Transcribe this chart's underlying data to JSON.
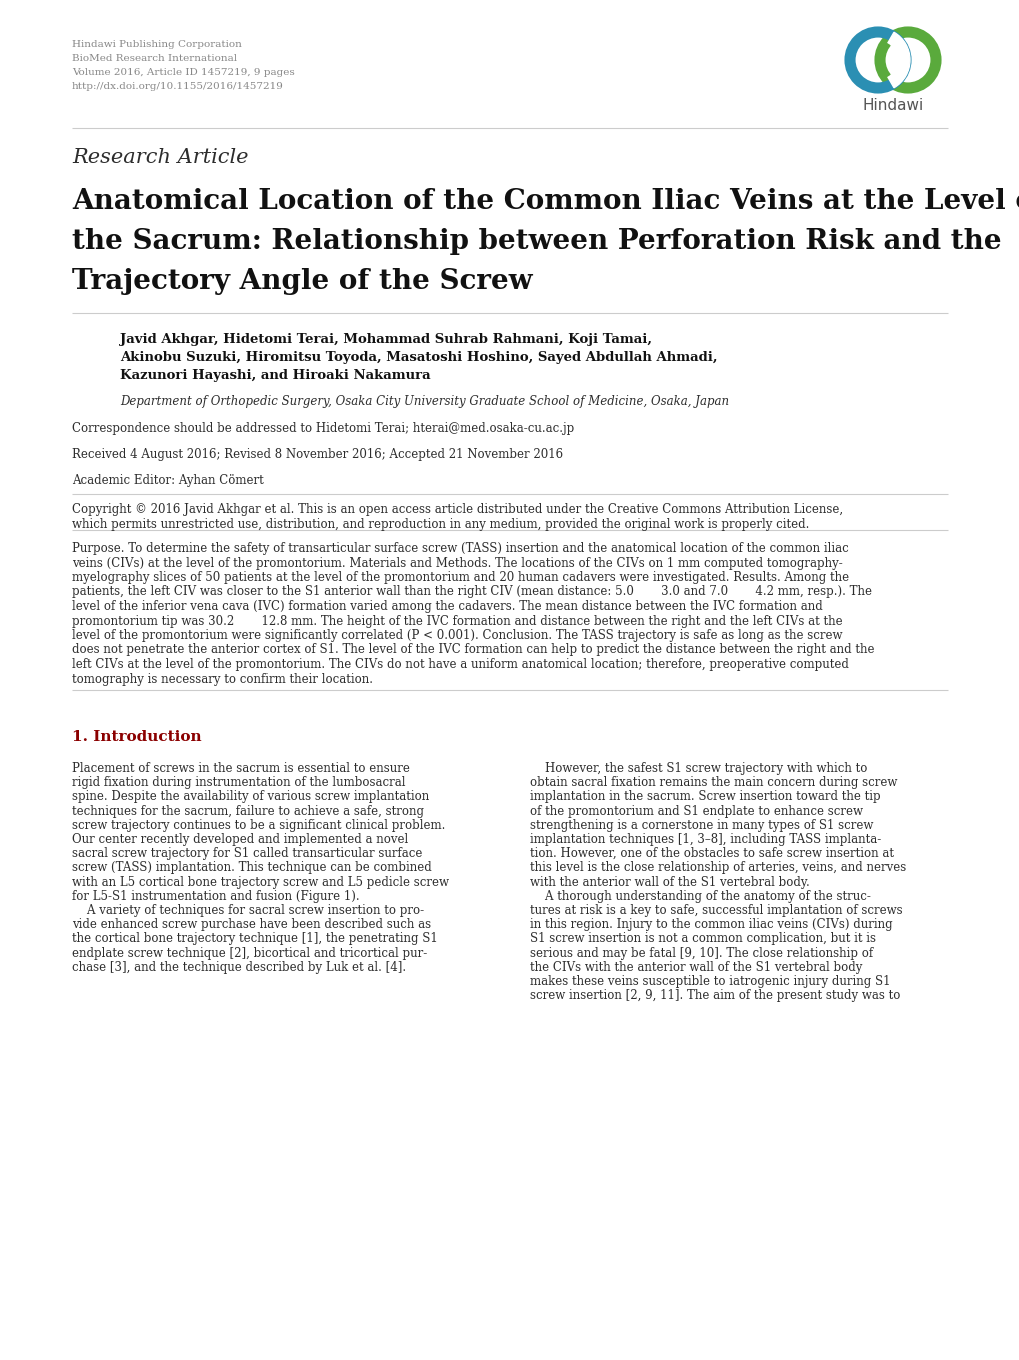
{
  "header_lines": [
    "Hindawi Publishing Corporation",
    "BioMed Research International",
    "Volume 2016, Article ID 1457219, 9 pages",
    "http://dx.doi.org/10.1155/2016/1457219"
  ],
  "research_article_label": "Research Article",
  "main_title_lines": [
    "Anatomical Location of the Common Iliac Veins at the Level of",
    "the Sacrum: Relationship between Perforation Risk and the",
    "Trajectory Angle of the Screw"
  ],
  "authors_line1": "Javid Akhgar, Hidetomi Terai, Mohammad Suhrab Rahmani, Koji Tamai,",
  "authors_line2": "Akinobu Suzuki, Hiromitsu Toyoda, Masatoshi Hoshino, Sayed Abdullah Ahmadi,",
  "authors_line3": "Kazunori Hayashi, and Hiroaki Nakamura",
  "affiliation": "Department of Orthopedic Surgery, Osaka City University Graduate School of Medicine, Osaka, Japan",
  "correspondence": "Correspondence should be addressed to Hidetomi Terai; hterai@med.osaka-cu.ac.jp",
  "received": "Received 4 August 2016; Revised 8 November 2016; Accepted 21 November 2016",
  "academic_editor": "Academic Editor: Ayhan Cömert",
  "copyright_line1": "Copyright © 2016 Javid Akhgar et al. This is an open access article distributed under the Creative Commons Attribution License,",
  "copyright_line2": "which permits unrestricted use, distribution, and reproduction in any medium, provided the original work is properly cited.",
  "abstract_lines": [
    "Purpose. To determine the safety of transarticular surface screw (TASS) insertion and the anatomical location of the common iliac",
    "veins (CIVs) at the level of the promontorium. Materials and Methods. The locations of the CIVs on 1 mm computed tomography-",
    "myelography slices of 50 patients at the level of the promontorium and 20 human cadavers were investigated. Results. Among the",
    "patients, the left CIV was closer to the S1 anterior wall than the right CIV (mean distance: 5.0   3.0 and 7.0   4.2 mm, resp.). The",
    "level of the inferior vena cava (IVC) formation varied among the cadavers. The mean distance between the IVC formation and",
    "promontorium tip was 30.2   12.8 mm. The height of the IVC formation and distance between the right and the left CIVs at the",
    "level of the promontorium were significantly correlated (P < 0.001). Conclusion. The TASS trajectory is safe as long as the screw",
    "does not penetrate the anterior cortex of S1. The level of the IVC formation can help to predict the distance between the right and the",
    "left CIVs at the level of the promontorium. The CIVs do not have a uniform anatomical location; therefore, preoperative computed",
    "tomography is necessary to confirm their location."
  ],
  "intro_heading": "1. Introduction",
  "intro_col1_lines": [
    "Placement of screws in the sacrum is essential to ensure",
    "rigid fixation during instrumentation of the lumbosacral",
    "spine. Despite the availability of various screw implantation",
    "techniques for the sacrum, failure to achieve a safe, strong",
    "screw trajectory continues to be a significant clinical problem.",
    "Our center recently developed and implemented a novel",
    "sacral screw trajectory for S1 called transarticular surface",
    "screw (TASS) implantation. This technique can be combined",
    "with an L5 cortical bone trajectory screw and L5 pedicle screw",
    "for L5-S1 instrumentation and fusion (Figure 1).",
    "    A variety of techniques for sacral screw insertion to pro-",
    "vide enhanced screw purchase have been described such as",
    "the cortical bone trajectory technique [1], the penetrating S1",
    "endplate screw technique [2], bicortical and tricortical pur-",
    "chase [3], and the technique described by Luk et al. [4]."
  ],
  "intro_col2_lines": [
    "    However, the safest S1 screw trajectory with which to",
    "obtain sacral fixation remains the main concern during screw",
    "implantation in the sacrum. Screw insertion toward the tip",
    "of the promontorium and S1 endplate to enhance screw",
    "strengthening is a cornerstone in many types of S1 screw",
    "implantation techniques [1, 3–8], including TASS implanta-",
    "tion. However, one of the obstacles to safe screw insertion at",
    "this level is the close relationship of arteries, veins, and nerves",
    "with the anterior wall of the S1 vertebral body.",
    "    A thorough understanding of the anatomy of the struc-",
    "tures at risk is a key to safe, successful implantation of screws",
    "in this region. Injury to the common iliac veins (CIVs) during",
    "S1 screw insertion is not a common complication, but it is",
    "serious and may be fatal [9, 10]. The close relationship of",
    "the CIVs with the anterior wall of the S1 vertebral body",
    "makes these veins susceptible to iatrogenic injury during S1",
    "screw insertion [2, 9, 11]. The aim of the present study was to"
  ],
  "bg_color": "#ffffff",
  "text_color": "#2d2d2d",
  "header_color": "#888888",
  "intro_heading_color": "#8B0000",
  "hindawi_blue": "#2b8fb3",
  "hindawi_green": "#5aaa3c",
  "line_color": "#cccccc"
}
